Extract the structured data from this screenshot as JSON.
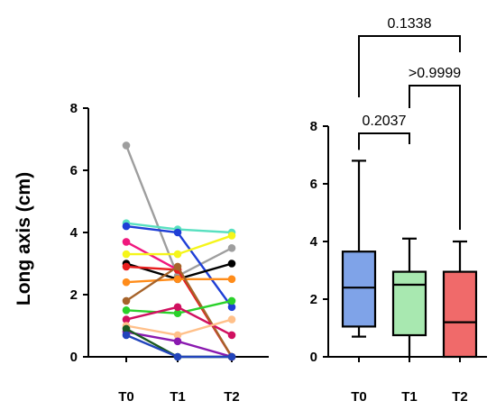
{
  "chart_data": [
    {
      "type": "line",
      "ylabel": "Long axis (cm)",
      "x": [
        "T0",
        "T1",
        "T2"
      ],
      "ylim": [
        0,
        8
      ],
      "yticks": [
        "0",
        "2",
        "4",
        "6",
        "8"
      ],
      "series": [
        {
          "color": "#9e9e9e",
          "values": [
            6.8,
            2.6,
            3.5
          ]
        },
        {
          "color": "#58e0c0",
          "values": [
            4.3,
            4.1,
            4.0
          ]
        },
        {
          "color": "#1f3fd6",
          "values": [
            4.2,
            4.0,
            1.6
          ]
        },
        {
          "color": "#f0187e",
          "values": [
            3.7,
            2.8,
            0.0
          ]
        },
        {
          "color": "#f5f51a",
          "values": [
            3.3,
            3.3,
            3.9
          ]
        },
        {
          "color": "#000000",
          "values": [
            3.0,
            2.5,
            3.0
          ]
        },
        {
          "color": "#e81e1e",
          "values": [
            2.9,
            2.8,
            0.0
          ]
        },
        {
          "color": "#ff8c1a",
          "values": [
            2.4,
            2.5,
            2.5
          ]
        },
        {
          "color": "#a6632a",
          "values": [
            1.8,
            2.9,
            0.0
          ]
        },
        {
          "color": "#2ad12a",
          "values": [
            1.5,
            1.4,
            1.8
          ]
        },
        {
          "color": "#d01060",
          "values": [
            1.2,
            1.6,
            0.7
          ]
        },
        {
          "color": "#ffc08a",
          "values": [
            1.0,
            0.7,
            1.2
          ]
        },
        {
          "color": "#8a1ab0",
          "values": [
            0.8,
            0.5,
            0.0
          ]
        },
        {
          "color": "#1a5a20",
          "values": [
            0.9,
            0.0,
            0.0
          ]
        },
        {
          "color": "#2244bb",
          "values": [
            0.7,
            0.0,
            0.0
          ]
        }
      ]
    },
    {
      "type": "box",
      "categories": [
        "T0",
        "T1",
        "T2"
      ],
      "ylim": [
        0,
        8
      ],
      "yticks": [
        "0",
        "2",
        "4",
        "6",
        "8"
      ],
      "colors": [
        "#7fa3e8",
        "#a8e8b0",
        "#f06a6a"
      ],
      "boxes": [
        {
          "min": 0.7,
          "q1": 1.05,
          "median": 2.4,
          "q3": 3.65,
          "max": 6.8
        },
        {
          "min": 0.0,
          "q1": 0.75,
          "median": 2.5,
          "q3": 2.95,
          "max": 4.1
        },
        {
          "min": 0.0,
          "q1": 0.0,
          "median": 1.2,
          "q3": 2.95,
          "max": 4.0
        }
      ],
      "comparisons": [
        {
          "from": 0,
          "to": 1,
          "label": "0.2037"
        },
        {
          "from": 1,
          "to": 2,
          "label": ">0.9999"
        },
        {
          "from": 0,
          "to": 2,
          "label": "0.1338"
        }
      ]
    }
  ]
}
